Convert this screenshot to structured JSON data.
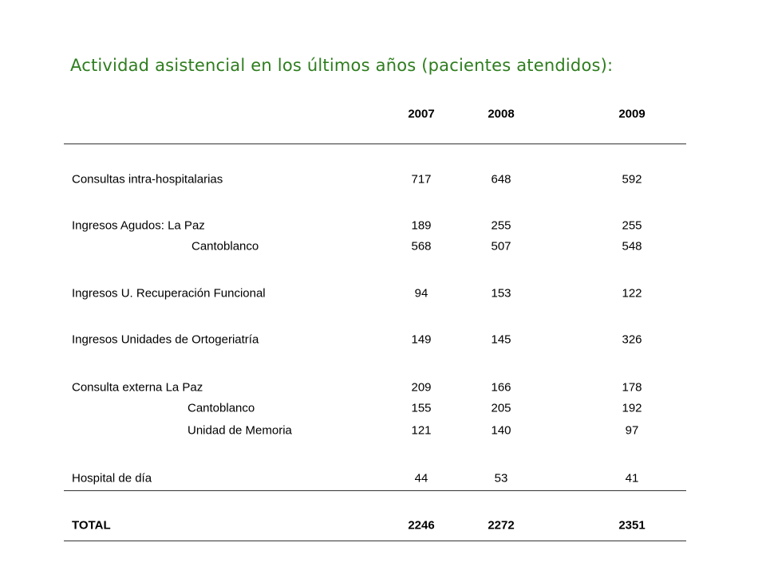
{
  "title": "Actividad asistencial en los últimos años (pacientes atendidos):",
  "colors": {
    "title": "#2e7d1e",
    "text": "#000000",
    "rule": "#333333"
  },
  "table": {
    "years": [
      "2007",
      "2008",
      "2009"
    ],
    "rows": [
      {
        "label": "Consultas intra-hospitalarias",
        "values": [
          "717",
          "648",
          "592"
        ]
      },
      {
        "label": "Ingresos Agudos: La Paz",
        "values": [
          "189",
          "255",
          "255"
        ]
      },
      {
        "label": "Cantoblanco",
        "values": [
          "568",
          "507",
          "548"
        ]
      },
      {
        "label": "Ingresos U. Recuperación Funcional",
        "values": [
          "94",
          "153",
          "122"
        ]
      },
      {
        "label": "Ingresos Unidades de Ortogeriatría",
        "values": [
          "149",
          "145",
          "326"
        ]
      },
      {
        "label": "Consulta externa La Paz",
        "values": [
          "209",
          "166",
          "178"
        ]
      },
      {
        "label": "Cantoblanco",
        "values": [
          "155",
          "205",
          "192"
        ]
      },
      {
        "label": "Unidad de Memoria",
        "values": [
          "121",
          "140",
          "97"
        ]
      },
      {
        "label": "Hospital de día",
        "values": [
          "44",
          "53",
          "41"
        ]
      }
    ],
    "total": {
      "label": "TOTAL",
      "values": [
        "2246",
        "2272",
        "2351"
      ]
    }
  }
}
